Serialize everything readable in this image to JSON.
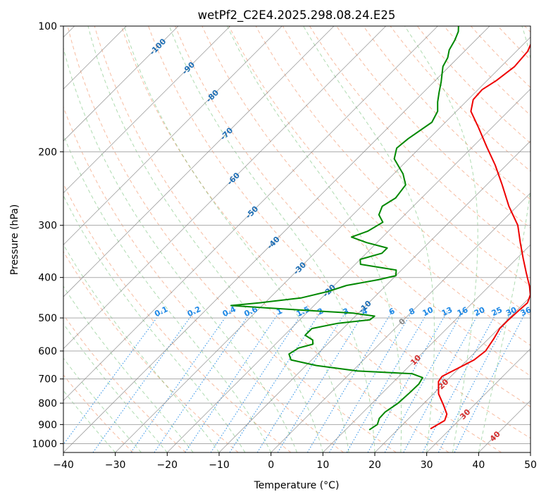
{
  "chart_data": {
    "type": "line",
    "subtype": "skew-T log-P diagram",
    "title": "wetPf2_C2E4.2025.298.08.24.E25",
    "xlabel": "Temperature (°C)",
    "ylabel": "Pressure (hPa)",
    "xlim": [
      -40,
      50
    ],
    "ylim": [
      1050,
      100
    ],
    "y_scale": "log",
    "x_ticks": [
      -40,
      -30,
      -20,
      -10,
      0,
      10,
      20,
      30,
      40,
      50
    ],
    "y_ticks": [
      100,
      200,
      300,
      400,
      500,
      600,
      700,
      800,
      900,
      1000
    ],
    "grid": true,
    "series": [
      {
        "name": "",
        "role": "temperature",
        "color": "#ee0000",
        "points": [
          [
            920,
            26.2
          ],
          [
            880,
            27.3
          ],
          [
            850,
            26.5
          ],
          [
            810,
            24.2
          ],
          [
            760,
            21.0
          ],
          [
            710,
            18.6
          ],
          [
            690,
            18.3
          ],
          [
            660,
            19.8
          ],
          [
            630,
            21.3
          ],
          [
            600,
            21.8
          ],
          [
            560,
            21.0
          ],
          [
            530,
            20.2
          ],
          [
            505,
            20.2
          ],
          [
            480,
            20.4
          ],
          [
            460,
            20.6
          ],
          [
            440,
            19.6
          ],
          [
            420,
            17.8
          ],
          [
            390,
            14.6
          ],
          [
            360,
            11.2
          ],
          [
            330,
            7.6
          ],
          [
            300,
            3.8
          ],
          [
            270,
            -1.6
          ],
          [
            240,
            -7.0
          ],
          [
            215,
            -12.2
          ],
          [
            195,
            -17.2
          ],
          [
            175,
            -22.6
          ],
          [
            160,
            -27.2
          ],
          [
            150,
            -29.0
          ],
          [
            142,
            -29.2
          ],
          [
            135,
            -28.2
          ],
          [
            125,
            -27.4
          ],
          [
            115,
            -27.8
          ],
          [
            105,
            -29.6
          ],
          [
            100,
            -31.5
          ]
        ]
      },
      {
        "name": "",
        "role": "dewpoint",
        "color": "#008800",
        "points": [
          [
            925,
            14.6
          ],
          [
            900,
            15.1
          ],
          [
            870,
            14.3
          ],
          [
            840,
            14.2
          ],
          [
            800,
            15.0
          ],
          [
            760,
            15.2
          ],
          [
            720,
            15.3
          ],
          [
            695,
            14.8
          ],
          [
            680,
            12.0
          ],
          [
            670,
            1.0
          ],
          [
            650,
            -8.0
          ],
          [
            630,
            -14.0
          ],
          [
            610,
            -15.5
          ],
          [
            590,
            -14.8
          ],
          [
            578,
            -12.8
          ],
          [
            565,
            -13.6
          ],
          [
            550,
            -16.0
          ],
          [
            530,
            -16.0
          ],
          [
            515,
            -12.0
          ],
          [
            505,
            -6.5
          ],
          [
            495,
            -6.3
          ],
          [
            487,
            -11.0
          ],
          [
            480,
            -20.0
          ],
          [
            472,
            -30.0
          ],
          [
            467,
            -36.0
          ],
          [
            460,
            -31.0
          ],
          [
            448,
            -24.0
          ],
          [
            432,
            -20.0
          ],
          [
            418,
            -17.6
          ],
          [
            405,
            -12.6
          ],
          [
            396,
            -10.0
          ],
          [
            384,
            -11.0
          ],
          [
            372,
            -19.0
          ],
          [
            362,
            -20.0
          ],
          [
            350,
            -17.0
          ],
          [
            340,
            -17.0
          ],
          [
            330,
            -22.0
          ],
          [
            320,
            -26.0
          ],
          [
            310,
            -24.0
          ],
          [
            295,
            -22.8
          ],
          [
            283,
            -25.0
          ],
          [
            270,
            -26.0
          ],
          [
            258,
            -25.0
          ],
          [
            240,
            -25.6
          ],
          [
            226,
            -28.2
          ],
          [
            208,
            -32.8
          ],
          [
            196,
            -34.4
          ],
          [
            186,
            -34.0
          ],
          [
            170,
            -32.6
          ],
          [
            160,
            -33.6
          ],
          [
            152,
            -35.4
          ],
          [
            144,
            -37.0
          ],
          [
            136,
            -38.6
          ],
          [
            130,
            -40.0
          ],
          [
            125,
            -41.2
          ],
          [
            119,
            -42.0
          ],
          [
            114,
            -43.2
          ],
          [
            108,
            -44.0
          ],
          [
            103,
            -45.0
          ],
          [
            100,
            -46.0
          ]
        ]
      }
    ],
    "background_lines": {
      "dry_adiabats": {
        "color": "#f4a582",
        "style": "dashed"
      },
      "moist_adiabats": {
        "color": "#4caf50",
        "style": "dashed"
      },
      "isotherms": {
        "color": "#888888",
        "style": "solid"
      },
      "mixing_ratio": {
        "color": "#1e88e5",
        "style": "dotted"
      }
    },
    "annotations": {
      "mixing_ratio_labels": [
        "0.1",
        "0.2",
        "0.4",
        "0.6",
        "1",
        "1.5",
        "2",
        "3",
        "4",
        "6",
        "8",
        "10",
        "13",
        "16",
        "20",
        "25",
        "30",
        "36"
      ],
      "mixing_ratio_label_color": "#1e88e5",
      "isotherm_labels": [
        {
          "text": "-100",
          "color": "#1f6fb5"
        },
        {
          "text": "-90",
          "color": "#1f6fb5"
        },
        {
          "text": "-80",
          "color": "#1f6fb5"
        },
        {
          "text": "-70",
          "color": "#1f6fb5"
        },
        {
          "text": "-60",
          "color": "#1f6fb5"
        },
        {
          "text": "-50",
          "color": "#1f6fb5"
        },
        {
          "text": "-40",
          "color": "#1f6fb5"
        },
        {
          "text": "-30",
          "color": "#1f6fb5"
        },
        {
          "text": "-20",
          "color": "#1f6fb5"
        },
        {
          "text": "-10",
          "color": "#1f6fb5"
        },
        {
          "text": "0",
          "color": "#888888"
        },
        {
          "text": "10",
          "color": "#d32f2f"
        },
        {
          "text": "20",
          "color": "#d32f2f"
        },
        {
          "text": "30",
          "color": "#d32f2f"
        },
        {
          "text": "40",
          "color": "#d32f2f"
        }
      ]
    }
  }
}
